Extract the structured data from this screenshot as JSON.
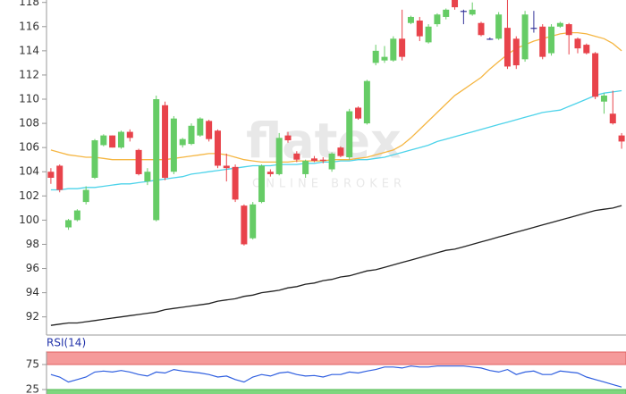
{
  "chart_data": [
    {
      "type": "candlestick",
      "watermark": {
        "logo": "flatex",
        "tagline": "ONLINE BROKER"
      },
      "up_color": "#66cc66",
      "down_color": "#e8434b",
      "flat_color": "#333399",
      "ylim": [
        90.5,
        118.2
      ],
      "yticks": [
        92,
        94,
        96,
        98,
        100,
        102,
        104,
        106,
        108,
        110,
        112,
        114,
        116,
        118
      ],
      "open": [
        104.0,
        104.5,
        99.4,
        100.0,
        101.5,
        103.5,
        106.2,
        107.0,
        106.0,
        107.3,
        105.8,
        103.2,
        100.0,
        109.5,
        104.0,
        106.2,
        106.3,
        107.0,
        108.2,
        107.4,
        104.5,
        104.4,
        101.2,
        98.5,
        101.5,
        104.0,
        103.8,
        107.0,
        105.5,
        103.8,
        105.1,
        105.0,
        104.2,
        106.0,
        105.2,
        109.3,
        108.0,
        113.0,
        113.2,
        113.2,
        115.0,
        116.3,
        116.5,
        114.7,
        116.2,
        116.8,
        118.2,
        117.3,
        117.0,
        116.3,
        115.0,
        115.0,
        115.9,
        115.0,
        113.3,
        115.9,
        116.0,
        113.8,
        116.0,
        116.2,
        115.0,
        114.5,
        113.8,
        109.8,
        108.8,
        107.0
      ],
      "high": [
        104.3,
        104.6,
        100.1,
        100.9,
        102.8,
        106.7,
        107.1,
        107.0,
        107.4,
        107.5,
        105.9,
        104.3,
        110.3,
        109.8,
        108.6,
        106.8,
        108.0,
        108.5,
        108.3,
        107.5,
        105.5,
        104.6,
        101.3,
        101.5,
        104.6,
        104.2,
        107.2,
        107.3,
        105.7,
        105.0,
        105.3,
        105.2,
        105.6,
        106.1,
        109.2,
        109.4,
        111.6,
        114.5,
        114.4,
        115.2,
        117.4,
        116.9,
        116.8,
        116.2,
        117.1,
        117.5,
        118.3,
        117.4,
        118.0,
        116.4,
        115.1,
        117.2,
        118.3,
        115.2,
        117.3,
        117.3,
        116.2,
        116.2,
        116.4,
        116.3,
        115.1,
        114.6,
        113.9,
        110.5,
        110.7,
        107.2
      ],
      "low": [
        103.0,
        102.3,
        99.2,
        99.9,
        101.3,
        103.4,
        106.1,
        106.0,
        105.9,
        106.5,
        103.7,
        102.9,
        99.9,
        103.3,
        103.8,
        106.0,
        106.2,
        106.9,
        106.5,
        104.3,
        103.2,
        101.5,
        97.9,
        98.4,
        101.4,
        103.6,
        103.7,
        106.4,
        104.8,
        103.5,
        104.8,
        104.7,
        104.0,
        105.2,
        105.0,
        108.3,
        107.9,
        112.8,
        113.0,
        113.1,
        113.2,
        116.2,
        114.8,
        114.6,
        116.0,
        116.6,
        117.4,
        116.2,
        116.9,
        115.2,
        114.9,
        114.9,
        112.5,
        112.5,
        113.1,
        115.5,
        113.3,
        113.6,
        115.9,
        113.7,
        113.8,
        113.7,
        110.0,
        108.8,
        107.9,
        105.9
      ],
      "close": [
        103.5,
        102.5,
        100.0,
        100.8,
        102.5,
        106.6,
        107.0,
        106.0,
        107.3,
        106.8,
        103.8,
        104.0,
        110.0,
        103.5,
        108.4,
        106.7,
        107.8,
        108.4,
        106.7,
        104.5,
        104.3,
        101.7,
        98.0,
        101.3,
        104.5,
        103.8,
        106.8,
        106.6,
        105.0,
        104.9,
        104.9,
        104.9,
        105.5,
        105.3,
        109.0,
        108.4,
        111.5,
        114.0,
        113.5,
        115.0,
        113.5,
        116.8,
        115.2,
        116.0,
        117.0,
        117.4,
        117.6,
        117.3,
        117.4,
        115.3,
        115.0,
        117.0,
        112.7,
        112.8,
        117.0,
        115.9,
        113.5,
        116.0,
        116.3,
        115.3,
        114.2,
        113.8,
        110.2,
        110.3,
        108.0,
        106.5
      ],
      "series": [
        {
          "color": "#f5b642",
          "values": [
            105.8,
            105.6,
            105.4,
            105.3,
            105.2,
            105.2,
            105.1,
            105.0,
            105.0,
            105.0,
            105.0,
            105.0,
            105.0,
            105.0,
            105.1,
            105.2,
            105.3,
            105.4,
            105.5,
            105.5,
            105.4,
            105.2,
            105.0,
            104.9,
            104.8,
            104.8,
            104.8,
            104.8,
            104.9,
            104.9,
            104.9,
            104.9,
            105.0,
            105.0,
            105.0,
            105.1,
            105.2,
            105.4,
            105.6,
            105.8,
            106.2,
            106.8,
            107.5,
            108.2,
            108.9,
            109.6,
            110.3,
            110.8,
            111.3,
            111.8,
            112.5,
            113.1,
            113.7,
            114.2,
            114.5,
            114.8,
            115.0,
            115.2,
            115.4,
            115.5,
            115.5,
            115.4,
            115.2,
            115.0,
            114.6,
            114.0
          ]
        },
        {
          "color": "#4dd3ea",
          "values": [
            102.5,
            102.5,
            102.6,
            102.6,
            102.7,
            102.7,
            102.8,
            102.9,
            103.0,
            103.0,
            103.1,
            103.2,
            103.3,
            103.4,
            103.5,
            103.6,
            103.8,
            103.9,
            104.0,
            104.1,
            104.2,
            104.3,
            104.4,
            104.5,
            104.5,
            104.5,
            104.6,
            104.6,
            104.6,
            104.7,
            104.7,
            104.8,
            104.8,
            104.9,
            104.9,
            105.0,
            105.0,
            105.1,
            105.2,
            105.4,
            105.6,
            105.8,
            106.0,
            106.2,
            106.5,
            106.7,
            106.9,
            107.1,
            107.3,
            107.5,
            107.7,
            107.9,
            108.1,
            108.3,
            108.5,
            108.7,
            108.9,
            109.0,
            109.1,
            109.4,
            109.7,
            110.0,
            110.3,
            110.5,
            110.6,
            110.7
          ]
        },
        {
          "color": "#222222",
          "values": [
            91.3,
            91.4,
            91.5,
            91.5,
            91.6,
            91.7,
            91.8,
            91.9,
            92.0,
            92.1,
            92.2,
            92.3,
            92.4,
            92.6,
            92.7,
            92.8,
            92.9,
            93.0,
            93.1,
            93.3,
            93.4,
            93.5,
            93.7,
            93.8,
            94.0,
            94.1,
            94.2,
            94.4,
            94.5,
            94.7,
            94.8,
            95.0,
            95.1,
            95.3,
            95.4,
            95.6,
            95.8,
            95.9,
            96.1,
            96.3,
            96.5,
            96.7,
            96.9,
            97.1,
            97.3,
            97.5,
            97.6,
            97.8,
            98.0,
            98.2,
            98.4,
            98.6,
            98.8,
            99.0,
            99.2,
            99.4,
            99.6,
            99.8,
            100.0,
            100.2,
            100.4,
            100.6,
            100.8,
            100.9,
            101.0,
            101.2
          ]
        }
      ]
    },
    {
      "type": "line",
      "title": "RSI(14)",
      "ylim": [
        15,
        100
      ],
      "yticks": [
        25,
        75
      ],
      "upper_band_color": "#f59a9a",
      "lower_band_color": "#7fd67f",
      "series": [
        {
          "color": "#2f5fe0",
          "values": [
            55,
            50,
            40,
            45,
            50,
            60,
            62,
            60,
            63,
            60,
            55,
            52,
            60,
            58,
            65,
            62,
            60,
            58,
            55,
            50,
            52,
            45,
            40,
            50,
            55,
            52,
            58,
            60,
            55,
            52,
            53,
            50,
            55,
            55,
            60,
            58,
            62,
            65,
            70,
            70,
            68,
            72,
            70,
            70,
            72,
            72,
            72,
            72,
            70,
            68,
            63,
            60,
            65,
            55,
            60,
            62,
            55,
            55,
            62,
            60,
            58,
            50,
            45,
            40,
            35,
            30
          ]
        }
      ]
    }
  ]
}
